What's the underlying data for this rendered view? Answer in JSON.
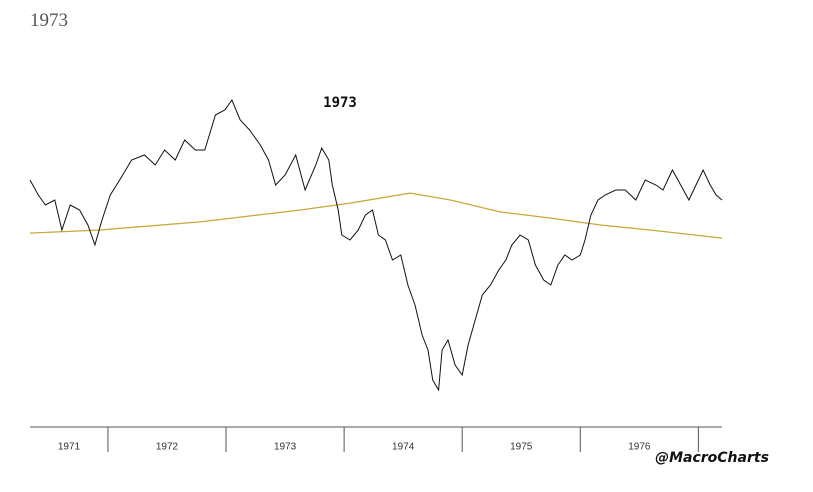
{
  "page_title": "1973",
  "chart_data": {
    "type": "line",
    "annotation": "1973",
    "watermark": "@MacroCharts",
    "xlim": [
      1971.34,
      1977.2
    ],
    "xticks": [
      1972,
      1973,
      1974,
      1975,
      1976,
      1977
    ],
    "year_labels": [
      1971,
      1972,
      1973,
      1974,
      1975,
      1976
    ],
    "series": [
      {
        "color": "#111111",
        "x": [
          1971.34,
          1971.41,
          1971.47,
          1971.55,
          1971.61,
          1971.68,
          1971.76,
          1971.83,
          1971.89,
          1971.95,
          1972.02,
          1972.1,
          1972.2,
          1972.31,
          1972.4,
          1972.48,
          1972.57,
          1972.65,
          1972.74,
          1972.82,
          1972.91,
          1972.99,
          1973.05,
          1973.12,
          1973.2,
          1973.29,
          1973.36,
          1973.42,
          1973.5,
          1973.59,
          1973.67,
          1973.76,
          1973.81,
          1973.87,
          1973.9,
          1973.95,
          1973.98,
          1974.05,
          1974.12,
          1974.18,
          1974.24,
          1974.29,
          1974.35,
          1974.41,
          1974.48,
          1974.54,
          1974.6,
          1974.66,
          1974.71,
          1974.75,
          1974.8,
          1974.83,
          1974.88,
          1974.94,
          1975.0,
          1975.05,
          1975.11,
          1975.17,
          1975.24,
          1975.31,
          1975.37,
          1975.42,
          1975.49,
          1975.56,
          1975.62,
          1975.69,
          1975.75,
          1975.81,
          1975.87,
          1975.93,
          1976.0,
          1976.04,
          1976.09,
          1976.15,
          1976.21,
          1976.3,
          1976.38,
          1976.47,
          1976.55,
          1976.64,
          1976.7,
          1976.78,
          1976.85,
          1976.92,
          1976.98,
          1977.04,
          1977.1,
          1977.15,
          1977.2
        ],
        "values": [
          922,
          898,
          882,
          890,
          842,
          882,
          874,
          850,
          818,
          858,
          898,
          922,
          954,
          962,
          946,
          970,
          954,
          986,
          970,
          970,
          1026,
          1034,
          1050,
          1018,
          1002,
          978,
          954,
          914,
          930,
          962,
          906,
          946,
          973,
          954,
          914,
          874,
          834,
          826,
          842,
          866,
          874,
          834,
          826,
          794,
          802,
          754,
          722,
          674,
          650,
          602,
          586,
          650,
          666,
          626,
          610,
          658,
          698,
          738,
          754,
          778,
          794,
          818,
          834,
          826,
          786,
          762,
          754,
          786,
          802,
          794,
          802,
          826,
          866,
          890,
          898,
          906,
          906,
          890,
          922,
          914,
          906,
          938,
          914,
          890,
          914,
          938,
          914,
          898,
          890
        ]
      },
      {
        "color": "#c8a83c",
        "x": [
          1971.34,
          1971.93,
          1972.78,
          1973.63,
          1974.05,
          1974.56,
          1974.9,
          1975.32,
          1975.75,
          1976.17,
          1976.59,
          1977.2
        ],
        "values": [
          837,
          842,
          855,
          874,
          885,
          901,
          890,
          871,
          861,
          850,
          842,
          829
        ]
      }
    ]
  }
}
